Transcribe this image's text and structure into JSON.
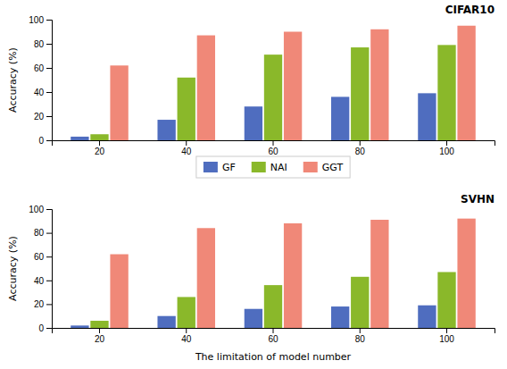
{
  "chart_data": [
    {
      "type": "bar",
      "title": "CIFAR10",
      "categories": [
        "20",
        "40",
        "60",
        "80",
        "100"
      ],
      "series": [
        {
          "name": "GF",
          "color": "#4f6dbf",
          "values": [
            3,
            17,
            28,
            36,
            39
          ]
        },
        {
          "name": "NAI",
          "color": "#8ab82a",
          "values": [
            5,
            52,
            71,
            77,
            79
          ]
        },
        {
          "name": "GGT",
          "color": "#f08878",
          "values": [
            62,
            87,
            90,
            92,
            95
          ]
        }
      ],
      "ylabel": "Accuracy (%)",
      "ylim": [
        0,
        100
      ],
      "yticks": [
        0,
        20,
        40,
        60,
        80,
        100
      ],
      "grid": false,
      "legend": "bottom"
    },
    {
      "type": "bar",
      "title": "SVHN",
      "categories": [
        "20",
        "40",
        "60",
        "80",
        "100"
      ],
      "series": [
        {
          "name": "GF",
          "color": "#4f6dbf",
          "values": [
            2,
            10,
            16,
            18,
            19
          ]
        },
        {
          "name": "NAI",
          "color": "#8ab82a",
          "values": [
            6,
            26,
            36,
            43,
            47
          ]
        },
        {
          "name": "GGT",
          "color": "#f08878",
          "values": [
            62,
            84,
            88,
            91,
            92
          ]
        }
      ],
      "ylabel": "Accuracy (%)",
      "xlabel": "The limitation of model number",
      "ylim": [
        0,
        100
      ],
      "yticks": [
        0,
        20,
        40,
        60,
        80,
        100
      ],
      "grid": false
    }
  ]
}
